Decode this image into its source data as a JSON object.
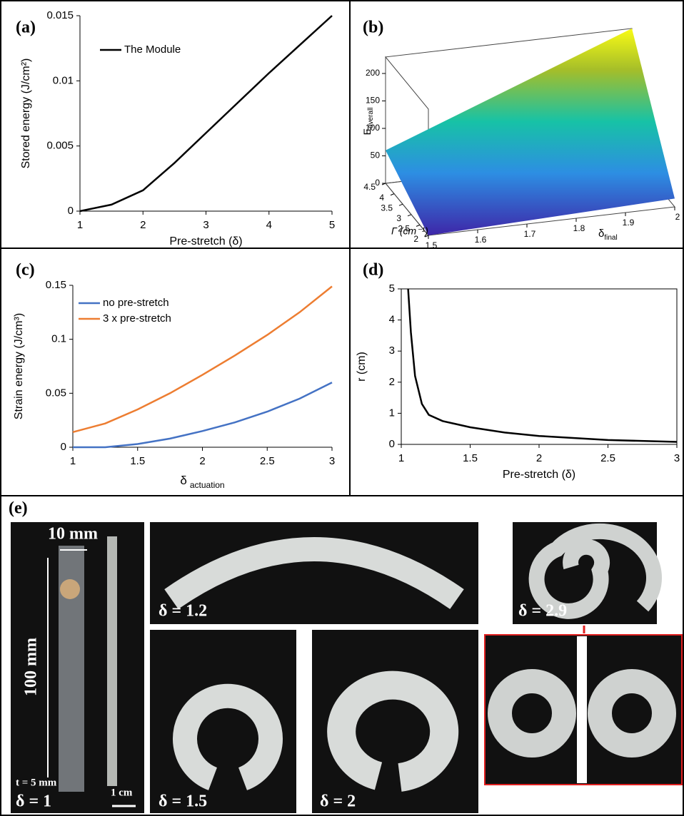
{
  "chart_data": [
    {
      "type": "line",
      "panel_label": "(a)",
      "xlabel": "Pre-stretch (δ)",
      "ylabel": "Stored energy (J/cm²)",
      "x": [
        1,
        1.5,
        2,
        2.5,
        3,
        3.5,
        4,
        4.5,
        5
      ],
      "series": [
        {
          "name": "The Module",
          "color": "#000000",
          "values": [
            0,
            0.0005,
            0.0016,
            0.0037,
            0.006,
            0.0083,
            0.0106,
            0.0128,
            0.015
          ]
        }
      ],
      "xlim": [
        1,
        5
      ],
      "xticks": [
        1,
        2,
        3,
        4,
        5
      ],
      "ylim": [
        0,
        0.015
      ],
      "yticks": [
        0,
        0.005,
        0.01,
        0.015
      ],
      "box": false
    },
    {
      "type": "surface",
      "panel_label": "(b)",
      "zlabel": "E",
      "zlabel_sub": "overall",
      "gamma_label": "Γ (cm⁻¹)",
      "delta_label": "δ",
      "delta_label_sub": "final",
      "gamma": [
        2,
        4.5
      ],
      "delta_final": [
        1.5,
        2
      ],
      "z": [
        [
          0,
          15
        ],
        [
          60,
          230
        ]
      ],
      "gamma_lim": [
        2,
        4.5
      ],
      "gamma_ticks": [
        2,
        2.5,
        3,
        3.5,
        4,
        4.5
      ],
      "delta_lim": [
        1.5,
        2
      ],
      "delta_ticks": [
        1.5,
        1.6,
        1.7,
        1.8,
        1.9,
        2
      ],
      "zlim": [
        0,
        230
      ],
      "zticks": [
        0,
        50,
        100,
        150,
        200
      ]
    },
    {
      "type": "line",
      "panel_label": "(c)",
      "xlabel": "δ",
      "xlabel_sub": "actuation",
      "ylabel": "Strain energy (J/cm³)",
      "x": [
        1,
        1.25,
        1.5,
        1.75,
        2,
        2.25,
        2.5,
        2.75,
        3
      ],
      "series": [
        {
          "name": "no pre-stretch",
          "color": "#4472c4",
          "values": [
            0,
            0,
            0.003,
            0.008,
            0.015,
            0.023,
            0.033,
            0.045,
            0.06
          ]
        },
        {
          "name": "3 x pre-stretch",
          "color": "#ed7d31",
          "values": [
            0.014,
            0.022,
            0.035,
            0.05,
            0.067,
            0.085,
            0.104,
            0.125,
            0.149
          ]
        }
      ],
      "xlim": [
        1,
        3
      ],
      "xticks": [
        1,
        1.5,
        2,
        2.5,
        3
      ],
      "ylim": [
        0,
        0.15
      ],
      "yticks": [
        0,
        0.05,
        0.1,
        0.15
      ],
      "box": false
    },
    {
      "type": "line",
      "panel_label": "(d)",
      "xlabel": "Pre-stretch (δ)",
      "ylabel": "r (cm)",
      "x": [
        1.05,
        1.07,
        1.1,
        1.15,
        1.2,
        1.3,
        1.5,
        1.75,
        2,
        2.5,
        3
      ],
      "series": [
        {
          "color": "#000000",
          "values": [
            5,
            3.6,
            2.2,
            1.3,
            0.95,
            0.75,
            0.55,
            0.38,
            0.27,
            0.14,
            0.08
          ]
        }
      ],
      "xlim": [
        1,
        3
      ],
      "xticks": [
        1,
        1.5,
        2,
        2.5,
        3
      ],
      "ylim": [
        0,
        5
      ],
      "yticks": [
        0,
        1,
        2,
        3,
        4,
        5
      ],
      "box": true
    }
  ],
  "panel_e": {
    "panel_label": "(e)",
    "width_label": "10 mm",
    "length_label": "100 mm",
    "thickness_label": "t = 5 mm",
    "scale_label": "1 cm",
    "deltas": [
      "δ = 1",
      "δ = 1.2",
      "δ = 1.5",
      "δ = 2",
      "δ = 2.9"
    ]
  }
}
